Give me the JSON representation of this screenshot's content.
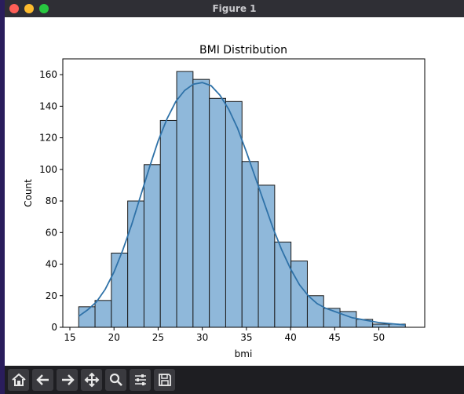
{
  "window": {
    "title": "Figure 1"
  },
  "colors": {
    "bar_fill": "#8fb8da",
    "bar_edge": "#1a1a1a",
    "kde": "#2f72a8",
    "titlebar": "#2f2f35",
    "toolbar": "#1e1e22"
  },
  "toolbar": {
    "buttons": [
      {
        "name": "home",
        "icon": "home-icon"
      },
      {
        "name": "back",
        "icon": "arrow-left-icon"
      },
      {
        "name": "forward",
        "icon": "arrow-right-icon"
      },
      {
        "name": "pan",
        "icon": "move-icon"
      },
      {
        "name": "zoom",
        "icon": "magnifier-icon"
      },
      {
        "name": "configure",
        "icon": "sliders-icon"
      },
      {
        "name": "save",
        "icon": "floppy-disk-icon"
      }
    ]
  },
  "chart_data": {
    "type": "bar",
    "title": "BMI Distribution",
    "xlabel": "bmi",
    "ylabel": "Count",
    "xlim": [
      14.2,
      55.2
    ],
    "ylim": [
      0,
      170
    ],
    "xticks": [
      15,
      20,
      25,
      30,
      35,
      40,
      45,
      50
    ],
    "yticks": [
      0,
      20,
      40,
      60,
      80,
      100,
      120,
      140,
      160
    ],
    "grid": false,
    "bin_edges": [
      16.0,
      17.85,
      19.7,
      21.55,
      23.4,
      25.25,
      27.1,
      28.95,
      30.8,
      32.65,
      34.5,
      36.35,
      38.2,
      40.05,
      41.9,
      43.75,
      45.6,
      47.45,
      49.3,
      51.15,
      53.0
    ],
    "values": [
      13,
      17,
      47,
      80,
      103,
      131,
      162,
      157,
      145,
      143,
      105,
      90,
      54,
      42,
      20,
      12,
      10,
      5,
      2,
      2
    ],
    "kde": {
      "x": [
        16,
        17,
        18,
        19,
        20,
        21,
        22,
        23,
        24,
        25,
        26,
        27,
        28,
        29,
        30,
        31,
        32,
        33,
        34,
        35,
        36,
        37,
        38,
        39,
        40,
        41,
        42,
        43,
        44,
        45,
        46,
        47,
        48,
        49,
        50,
        51,
        52,
        53
      ],
      "y": [
        7,
        11,
        16,
        24,
        35,
        49,
        65,
        83,
        101,
        118,
        132,
        143,
        150,
        154,
        155,
        153,
        147,
        138,
        126,
        111,
        95,
        79,
        63,
        49,
        37,
        27,
        20,
        15,
        12,
        10,
        8,
        6,
        5,
        4,
        3,
        2.5,
        2,
        1.5
      ]
    }
  }
}
